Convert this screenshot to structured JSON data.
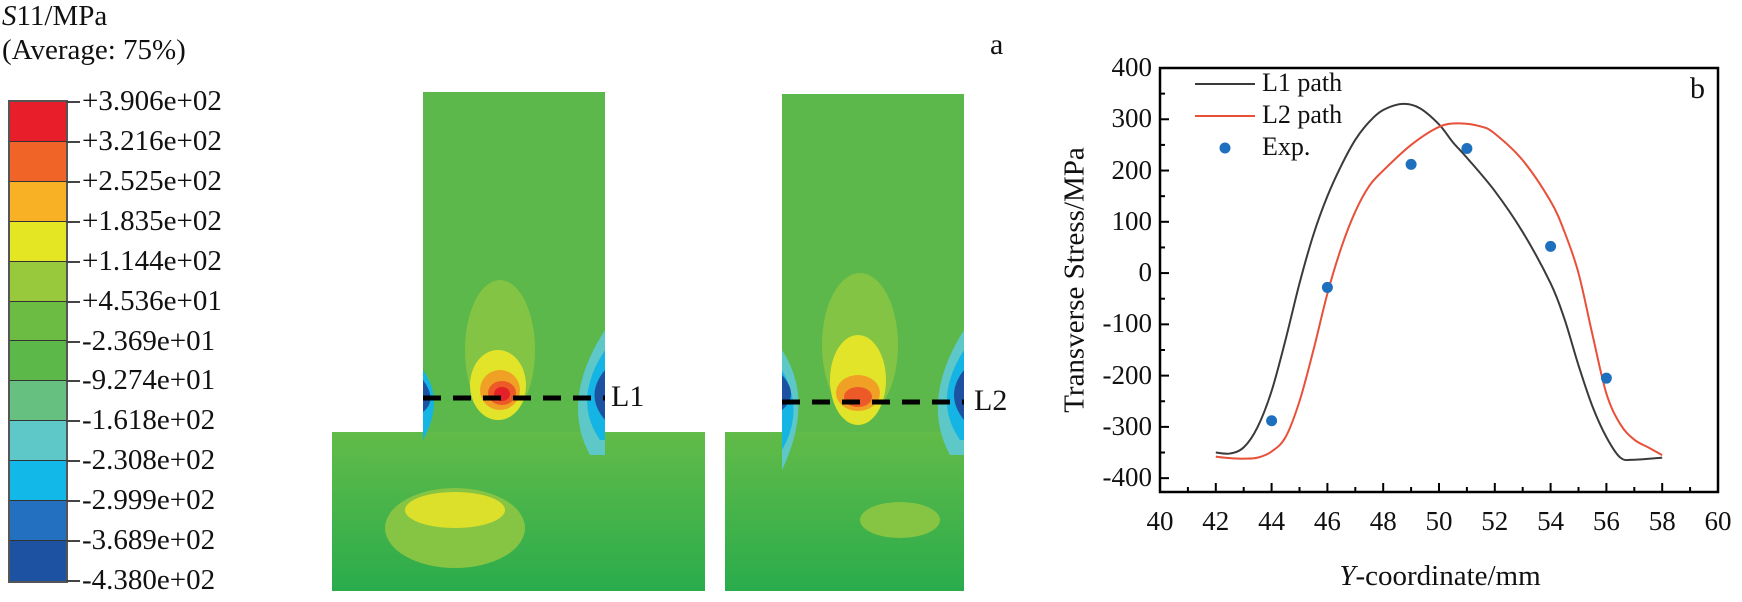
{
  "legend": {
    "title_var": "S",
    "title_rest": "11/MPa",
    "subtitle": "(Average: 75%)",
    "labels": [
      "+3.906e+02",
      "+3.216e+02",
      "+2.525e+02",
      "+1.835e+02",
      "+1.144e+02",
      "+4.536e+01",
      "-2.369e+01",
      "-9.274e+01",
      "-1.618e+02",
      "-2.308e+02",
      "-2.999e+02",
      "-3.689e+02",
      "-4.380e+02"
    ],
    "colors": [
      "#e81e2a",
      "#f06428",
      "#f8b024",
      "#e4e624",
      "#98c83c",
      "#6cbc44",
      "#5cb848",
      "#66c080",
      "#5ec8c8",
      "#12b8e8",
      "#2470c0",
      "#1d52a2"
    ]
  },
  "panel_a": {
    "label": "a",
    "path1": "L1",
    "path2": "L2"
  },
  "chart_data": {
    "type": "line",
    "panel_label": "b",
    "xlabel_var": "Y",
    "xlabel_rest": "-coordinate/mm",
    "ylabel": "Transverse Stress/MPa",
    "xlim": [
      40,
      60
    ],
    "ylim": [
      -427,
      400
    ],
    "xticks": [
      40,
      42,
      44,
      46,
      48,
      50,
      52,
      54,
      56,
      58,
      60
    ],
    "yticks": [
      400,
      300,
      200,
      100,
      0,
      -100,
      -200,
      -300,
      -400
    ],
    "legend_position": "top-left",
    "series": [
      {
        "name": "L1 path",
        "color": "#3a3a3a",
        "kind": "line",
        "x": [
          42,
          42.5,
          43,
          43.5,
          44,
          44.5,
          45,
          45.5,
          46,
          46.5,
          47,
          47.5,
          48,
          48.7,
          49.3,
          50,
          50.5,
          51,
          52,
          53,
          54,
          54.5,
          55,
          55.5,
          56,
          56.5,
          57,
          58
        ],
        "y": [
          -350,
          -352,
          -340,
          -300,
          -230,
          -130,
          -20,
          75,
          150,
          210,
          260,
          295,
          318,
          330,
          322,
          290,
          255,
          225,
          160,
          80,
          -20,
          -90,
          -180,
          -260,
          -320,
          -360,
          -364,
          -360
        ]
      },
      {
        "name": "L2 path",
        "color": "#e8503a",
        "kind": "line",
        "x": [
          42,
          42.5,
          43,
          43.5,
          44,
          44.5,
          45,
          45.5,
          46,
          46.5,
          47,
          47.5,
          48,
          49,
          50,
          50.7,
          51.5,
          52,
          53,
          54,
          54.5,
          55,
          55.5,
          56,
          56.5,
          57,
          57.5,
          58
        ],
        "y": [
          -358,
          -361,
          -362,
          -360,
          -348,
          -320,
          -250,
          -150,
          -40,
          50,
          120,
          170,
          200,
          250,
          285,
          292,
          286,
          272,
          220,
          140,
          80,
          0,
          -120,
          -235,
          -295,
          -325,
          -340,
          -355
        ]
      },
      {
        "name": "Exp.",
        "color": "#1f6fbf",
        "kind": "scatter",
        "x": [
          44,
          46,
          49,
          51,
          54,
          56
        ],
        "y": [
          -288,
          -28,
          212,
          243,
          52,
          -205
        ]
      }
    ]
  }
}
